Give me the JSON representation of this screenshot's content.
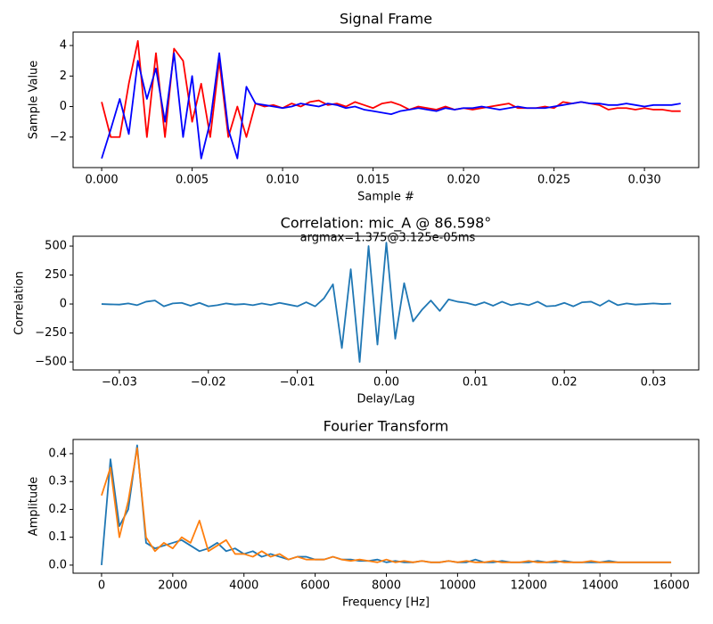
{
  "chart_data": [
    {
      "type": "line",
      "title": "Signal Frame",
      "xlabel": "Sample #",
      "ylabel": "Sample Value",
      "x": [
        0,
        0.0005,
        0.001,
        0.0015,
        0.002,
        0.0025,
        0.003,
        0.0035,
        0.004,
        0.0045,
        0.005,
        0.0055,
        0.006,
        0.0065,
        0.007,
        0.0075,
        0.008,
        0.0085,
        0.009,
        0.0095,
        0.01,
        0.0105,
        0.011,
        0.0115,
        0.012,
        0.0125,
        0.013,
        0.0135,
        0.014,
        0.0145,
        0.015,
        0.0155,
        0.016,
        0.0165,
        0.017,
        0.0175,
        0.018,
        0.0185,
        0.019,
        0.0195,
        0.02,
        0.0205,
        0.021,
        0.0215,
        0.022,
        0.0225,
        0.023,
        0.0235,
        0.024,
        0.0245,
        0.025,
        0.0255,
        0.026,
        0.0265,
        0.027,
        0.0275,
        0.028,
        0.0285,
        0.029,
        0.0295,
        0.03,
        0.0305,
        0.031,
        0.0315,
        0.032
      ],
      "series": [
        {
          "color": "#ff0000",
          "values": [
            0.3,
            -2,
            -2,
            1.5,
            4.3,
            -2,
            3.5,
            -2,
            3.8,
            3,
            -1,
            1.5,
            -2,
            3,
            -2,
            0,
            -2,
            0.2,
            0,
            0.1,
            -0.1,
            0.2,
            0,
            0.3,
            0.4,
            0.1,
            0.2,
            0,
            0.3,
            0.1,
            -0.1,
            0.2,
            0.3,
            0.1,
            -0.2,
            0,
            -0.1,
            -0.2,
            0,
            -0.2,
            -0.1,
            -0.2,
            -0.1,
            0,
            0.1,
            0.2,
            -0.1,
            -0.1,
            -0.1,
            0,
            -0.1,
            0.3,
            0.2,
            0.3,
            0.2,
            0.1,
            -0.2,
            -0.1,
            -0.1,
            -0.2,
            -0.1,
            -0.2,
            -0.2,
            -0.3,
            -0.3
          ]
        },
        {
          "color": "#0000ff",
          "values": [
            -3.4,
            -1.5,
            0.5,
            -1.8,
            3,
            0.5,
            2.5,
            -1,
            3.5,
            -2,
            2,
            -3.4,
            -1,
            3.5,
            -1.5,
            -3.4,
            1.3,
            0.2,
            0.1,
            0,
            -0.1,
            0,
            0.2,
            0.1,
            0,
            0.2,
            0.1,
            -0.1,
            0,
            -0.2,
            -0.3,
            -0.4,
            -0.5,
            -0.3,
            -0.2,
            -0.1,
            -0.2,
            -0.3,
            -0.1,
            -0.2,
            -0.1,
            -0.1,
            0,
            -0.1,
            -0.2,
            -0.1,
            0,
            -0.1,
            -0.1,
            -0.1,
            0,
            0.1,
            0.2,
            0.3,
            0.2,
            0.2,
            0.1,
            0.1,
            0.2,
            0.1,
            0,
            0.1,
            0.1,
            0.1,
            0.2
          ]
        }
      ],
      "xlim": [
        -0.00158,
        0.033
      ],
      "ylim": [
        -4.0,
        4.88
      ],
      "xticks": [
        {
          "value": 0,
          "label": "0.000"
        },
        {
          "value": 0.005,
          "label": "0.005"
        },
        {
          "value": 0.01,
          "label": "0.010"
        },
        {
          "value": 0.015,
          "label": "0.015"
        },
        {
          "value": 0.02,
          "label": "0.020"
        },
        {
          "value": 0.025,
          "label": "0.025"
        },
        {
          "value": 0.03,
          "label": "0.030"
        }
      ],
      "yticks": [
        {
          "value": -2,
          "label": "−2"
        },
        0,
        2,
        4
      ]
    },
    {
      "type": "line",
      "title": "Correlation: mic_A @ 86.598°",
      "annotation": "argmax=1.375@3.125e-05ms",
      "xlabel": "Delay/Lag",
      "ylabel": "Correlation",
      "x": [
        -0.032,
        -0.031,
        -0.03,
        -0.029,
        -0.028,
        -0.027,
        -0.026,
        -0.025,
        -0.024,
        -0.023,
        -0.022,
        -0.021,
        -0.02,
        -0.019,
        -0.018,
        -0.017,
        -0.016,
        -0.015,
        -0.014,
        -0.013,
        -0.012,
        -0.011,
        -0.01,
        -0.009,
        -0.008,
        -0.007,
        -0.006,
        -0.005,
        -0.004,
        -0.003,
        -0.002,
        -0.001,
        0,
        0.001,
        0.002,
        0.003,
        0.004,
        0.005,
        0.006,
        0.007,
        0.008,
        0.009,
        0.01,
        0.011,
        0.012,
        0.013,
        0.014,
        0.015,
        0.016,
        0.017,
        0.018,
        0.019,
        0.02,
        0.021,
        0.022,
        0.023,
        0.024,
        0.025,
        0.026,
        0.027,
        0.028,
        0.029,
        0.03,
        0.031,
        0.032
      ],
      "series": [
        {
          "color": "#1f77b4",
          "values": [
            0,
            -3,
            -5,
            5,
            -10,
            20,
            30,
            -20,
            5,
            10,
            -15,
            10,
            -20,
            -10,
            5,
            -5,
            0,
            -10,
            5,
            -8,
            10,
            -5,
            -20,
            15,
            -20,
            50,
            170,
            -380,
            300,
            -500,
            500,
            -350,
            530,
            -300,
            180,
            -150,
            -50,
            30,
            -60,
            40,
            20,
            10,
            -10,
            15,
            -15,
            20,
            -10,
            5,
            -10,
            20,
            -20,
            -15,
            10,
            -20,
            15,
            20,
            -15,
            30,
            -10,
            5,
            -5,
            0,
            5,
            0,
            3
          ]
        }
      ],
      "xlim": [
        -0.0352,
        0.0351
      ],
      "ylim": [
        -569,
        585
      ],
      "xticks": [
        {
          "value": -0.03,
          "label": "−0.03"
        },
        {
          "value": -0.02,
          "label": "−0.02"
        },
        {
          "value": -0.01,
          "label": "−0.01"
        },
        {
          "value": 0,
          "label": "0.00"
        },
        {
          "value": 0.01,
          "label": "0.01"
        },
        {
          "value": 0.02,
          "label": "0.02"
        },
        {
          "value": 0.03,
          "label": "0.03"
        }
      ],
      "yticks": [
        {
          "value": -500,
          "label": "−500"
        },
        {
          "value": -250,
          "label": "−250"
        },
        0,
        250,
        500
      ]
    },
    {
      "type": "line",
      "title": "Fourier Transform",
      "xlabel": "Frequency [Hz]",
      "ylabel": "Amplitude",
      "x": [
        0,
        250,
        500,
        750,
        1000,
        1250,
        1500,
        1750,
        2000,
        2250,
        2500,
        2750,
        3000,
        3250,
        3500,
        3750,
        4000,
        4250,
        4500,
        4750,
        5000,
        5250,
        5500,
        5750,
        6000,
        6250,
        6500,
        6750,
        7000,
        7250,
        7500,
        7750,
        8000,
        8250,
        8500,
        8750,
        9000,
        9250,
        9500,
        9750,
        10000,
        10250,
        10500,
        10750,
        11000,
        11250,
        11500,
        11750,
        12000,
        12250,
        12500,
        12750,
        13000,
        13250,
        13500,
        13750,
        14000,
        14250,
        14500,
        14750,
        15000,
        15250,
        15500,
        15750,
        16000
      ],
      "series": [
        {
          "color": "#1f77b4",
          "values": [
            0,
            0.38,
            0.14,
            0.2,
            0.43,
            0.08,
            0.06,
            0.07,
            0.08,
            0.09,
            0.07,
            0.05,
            0.06,
            0.08,
            0.05,
            0.06,
            0.04,
            0.05,
            0.03,
            0.04,
            0.03,
            0.02,
            0.03,
            0.03,
            0.02,
            0.02,
            0.03,
            0.02,
            0.02,
            0.015,
            0.015,
            0.02,
            0.01,
            0.015,
            0.01,
            0.01,
            0.015,
            0.01,
            0.01,
            0.015,
            0.01,
            0.01,
            0.02,
            0.01,
            0.01,
            0.015,
            0.01,
            0.01,
            0.01,
            0.015,
            0.01,
            0.01,
            0.015,
            0.01,
            0.01,
            0.01,
            0.01,
            0.015,
            0.01,
            0.01,
            0.01,
            0.01,
            0.01,
            0.01,
            0.01
          ]
        },
        {
          "color": "#ff7f0e",
          "values": [
            0.25,
            0.35,
            0.1,
            0.23,
            0.42,
            0.1,
            0.05,
            0.08,
            0.06,
            0.1,
            0.08,
            0.16,
            0.05,
            0.07,
            0.09,
            0.04,
            0.04,
            0.03,
            0.05,
            0.03,
            0.04,
            0.02,
            0.03,
            0.02,
            0.02,
            0.02,
            0.03,
            0.02,
            0.015,
            0.02,
            0.015,
            0.01,
            0.02,
            0.01,
            0.015,
            0.01,
            0.015,
            0.01,
            0.01,
            0.015,
            0.01,
            0.015,
            0.01,
            0.01,
            0.015,
            0.01,
            0.01,
            0.01,
            0.015,
            0.01,
            0.01,
            0.015,
            0.01,
            0.01,
            0.01,
            0.015,
            0.01,
            0.01,
            0.01,
            0.01,
            0.01,
            0.01,
            0.01,
            0.01,
            0.01
          ]
        }
      ],
      "xlim": [
        -800,
        16775
      ],
      "ylim": [
        -0.029,
        0.451
      ],
      "xticks": [
        0,
        2000,
        4000,
        6000,
        8000,
        10000,
        12000,
        14000,
        16000
      ],
      "yticks": [
        {
          "value": 0,
          "label": "0.0"
        },
        0.1,
        0.2,
        0.3,
        0.4
      ]
    }
  ]
}
